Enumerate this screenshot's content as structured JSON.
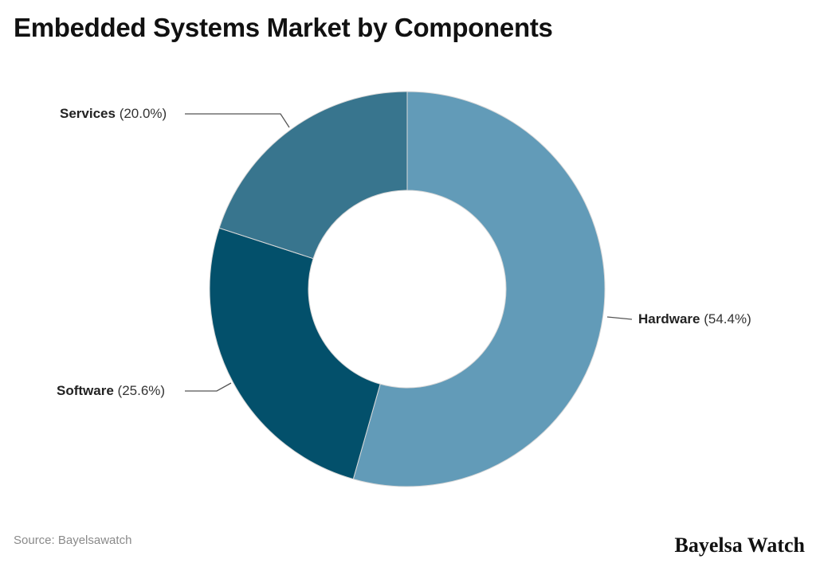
{
  "title": "Embedded Systems Market by Components",
  "source": "Source: Bayelsawatch",
  "brand": "Bayelsa Watch",
  "colors": {
    "hardware": "#629bb8",
    "software": "#03506b",
    "services": "#38758e",
    "leader": "#555555",
    "slice_border": "#d8d8d8"
  },
  "labels": {
    "hardware": {
      "name": "Hardware",
      "pct": "(54.4%)"
    },
    "software": {
      "name": "Software",
      "pct": "(25.6%)"
    },
    "services": {
      "name": "Services",
      "pct": "(20.0%)"
    }
  },
  "chart_data": {
    "type": "pie",
    "subtype": "donut",
    "title": "Embedded Systems Market by Components",
    "categories": [
      "Hardware",
      "Software",
      "Services"
    ],
    "values": [
      54.4,
      25.6,
      20.0
    ],
    "unit": "%",
    "colors": [
      "#629bb8",
      "#03506b",
      "#38758e"
    ],
    "start_angle": "12 o'clock, clockwise",
    "legend": "none (outside leader-line labels)",
    "source": "Source: Bayelsawatch"
  }
}
